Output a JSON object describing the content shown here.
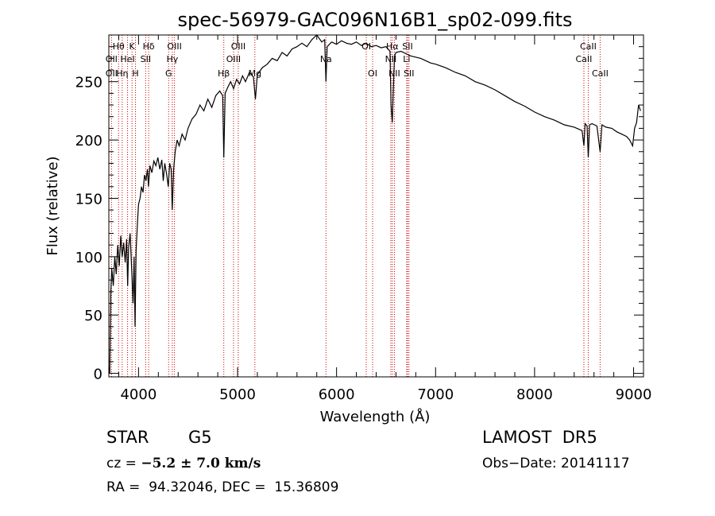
{
  "chart_data": {
    "type": "line",
    "title": "spec-56979-GAC096N16B1_sp02-099.fits",
    "xlabel": "Wavelength (Å)",
    "ylabel": "Flux (relative)",
    "xlim": [
      3700,
      9100
    ],
    "ylim": [
      -3,
      290
    ],
    "xticks": [
      4000,
      5000,
      6000,
      7000,
      8000,
      9000
    ],
    "yticks": [
      0,
      50,
      100,
      150,
      200,
      250
    ],
    "series": [
      {
        "values": [
          [
            3700,
            5
          ],
          [
            3710,
            0
          ],
          [
            3720,
            70
          ],
          [
            3730,
            90
          ],
          [
            3745,
            75
          ],
          [
            3760,
            100
          ],
          [
            3775,
            85
          ],
          [
            3790,
            110
          ],
          [
            3805,
            92
          ],
          [
            3820,
            118
          ],
          [
            3835,
            100
          ],
          [
            3850,
            112
          ],
          [
            3865,
            95
          ],
          [
            3880,
            115
          ],
          [
            3890,
            75
          ],
          [
            3900,
            108
          ],
          [
            3915,
            120
          ],
          [
            3930,
            90
          ],
          [
            3945,
            60
          ],
          [
            3955,
            100
          ],
          [
            3965,
            40
          ],
          [
            3975,
            105
          ],
          [
            3990,
            130
          ],
          [
            4000,
            145
          ],
          [
            4015,
            150
          ],
          [
            4030,
            160
          ],
          [
            4045,
            155
          ],
          [
            4060,
            170
          ],
          [
            4075,
            165
          ],
          [
            4090,
            175
          ],
          [
            4100,
            160
          ],
          [
            4115,
            178
          ],
          [
            4135,
            172
          ],
          [
            4155,
            182
          ],
          [
            4175,
            178
          ],
          [
            4195,
            185
          ],
          [
            4215,
            175
          ],
          [
            4235,
            183
          ],
          [
            4250,
            165
          ],
          [
            4265,
            180
          ],
          [
            4285,
            170
          ],
          [
            4300,
            160
          ],
          [
            4315,
            180
          ],
          [
            4330,
            175
          ],
          [
            4340,
            140
          ],
          [
            4355,
            175
          ],
          [
            4370,
            190
          ],
          [
            4390,
            200
          ],
          [
            4410,
            195
          ],
          [
            4440,
            205
          ],
          [
            4470,
            200
          ],
          [
            4500,
            210
          ],
          [
            4540,
            218
          ],
          [
            4580,
            222
          ],
          [
            4620,
            230
          ],
          [
            4660,
            225
          ],
          [
            4700,
            235
          ],
          [
            4740,
            228
          ],
          [
            4780,
            238
          ],
          [
            4820,
            242
          ],
          [
            4850,
            238
          ],
          [
            4861,
            185
          ],
          [
            4875,
            240
          ],
          [
            4900,
            245
          ],
          [
            4930,
            250
          ],
          [
            4960,
            244
          ],
          [
            4990,
            252
          ],
          [
            5020,
            248
          ],
          [
            5050,
            255
          ],
          [
            5080,
            250
          ],
          [
            5120,
            258
          ],
          [
            5160,
            254
          ],
          [
            5180,
            235
          ],
          [
            5200,
            256
          ],
          [
            5250,
            262
          ],
          [
            5300,
            265
          ],
          [
            5350,
            270
          ],
          [
            5400,
            268
          ],
          [
            5450,
            275
          ],
          [
            5500,
            272
          ],
          [
            5550,
            278
          ],
          [
            5600,
            280
          ],
          [
            5650,
            283
          ],
          [
            5700,
            280
          ],
          [
            5750,
            286
          ],
          [
            5800,
            290
          ],
          [
            5850,
            284
          ],
          [
            5880,
            286
          ],
          [
            5893,
            250
          ],
          [
            5905,
            280
          ],
          [
            5950,
            284
          ],
          [
            6000,
            282
          ],
          [
            6050,
            285
          ],
          [
            6100,
            283
          ],
          [
            6150,
            282
          ],
          [
            6200,
            284
          ],
          [
            6250,
            281
          ],
          [
            6300,
            283
          ],
          [
            6350,
            280
          ],
          [
            6400,
            281
          ],
          [
            6450,
            279
          ],
          [
            6500,
            280
          ],
          [
            6540,
            276
          ],
          [
            6550,
            230
          ],
          [
            6563,
            215
          ],
          [
            6570,
            235
          ],
          [
            6585,
            272
          ],
          [
            6600,
            275
          ],
          [
            6650,
            276
          ],
          [
            6700,
            274
          ],
          [
            6750,
            272
          ],
          [
            6800,
            271
          ],
          [
            6850,
            270
          ],
          [
            6900,
            268
          ],
          [
            6950,
            266
          ],
          [
            7000,
            265
          ],
          [
            7100,
            262
          ],
          [
            7200,
            258
          ],
          [
            7300,
            255
          ],
          [
            7400,
            250
          ],
          [
            7500,
            247
          ],
          [
            7600,
            243
          ],
          [
            7700,
            238
          ],
          [
            7800,
            233
          ],
          [
            7900,
            229
          ],
          [
            8000,
            224
          ],
          [
            8100,
            220
          ],
          [
            8200,
            217
          ],
          [
            8300,
            213
          ],
          [
            8400,
            211
          ],
          [
            8480,
            208
          ],
          [
            8498,
            195
          ],
          [
            8510,
            214
          ],
          [
            8530,
            212
          ],
          [
            8542,
            185
          ],
          [
            8555,
            213
          ],
          [
            8580,
            214
          ],
          [
            8630,
            212
          ],
          [
            8662,
            190
          ],
          [
            8680,
            213
          ],
          [
            8720,
            211
          ],
          [
            8780,
            210
          ],
          [
            8830,
            207
          ],
          [
            8880,
            205
          ],
          [
            8930,
            203
          ],
          [
            8960,
            200
          ],
          [
            8990,
            195
          ],
          [
            9010,
            210
          ],
          [
            9030,
            215
          ],
          [
            9050,
            230
          ],
          [
            9070,
            225
          ]
        ]
      }
    ],
    "lines": [
      {
        "label": "Hθ",
        "x": 3798,
        "row": 1
      },
      {
        "label": "OII",
        "x": 3727,
        "row": 2
      },
      {
        "label": "OII",
        "x": 3727,
        "row": 3
      },
      {
        "label": "HeI",
        "x": 3889,
        "row": 2
      },
      {
        "label": "Hη",
        "x": 3835,
        "row": 3
      },
      {
        "label": "K",
        "x": 3934,
        "row": 1
      },
      {
        "label": "H",
        "x": 3969,
        "row": 3
      },
      {
        "label": "Hδ",
        "x": 4102,
        "row": 1
      },
      {
        "label": "SII",
        "x": 4072,
        "row": 2
      },
      {
        "label": "OIII",
        "x": 4363,
        "row": 1
      },
      {
        "label": "Hγ",
        "x": 4341,
        "row": 2
      },
      {
        "label": "G",
        "x": 4304,
        "row": 3
      },
      {
        "label": "OIII",
        "x": 5007,
        "row": 1
      },
      {
        "label": "OIII",
        "x": 4959,
        "row": 2
      },
      {
        "label": "Hβ",
        "x": 4861,
        "row": 3
      },
      {
        "label": "Mg",
        "x": 5175,
        "row": 3
      },
      {
        "label": "Na",
        "x": 5893,
        "row": 2
      },
      {
        "label": "OI",
        "x": 6300,
        "row": 1
      },
      {
        "label": "OI",
        "x": 6364,
        "row": 3
      },
      {
        "label": "Hα",
        "x": 6563,
        "row": 1
      },
      {
        "label": "NII",
        "x": 6548,
        "row": 2
      },
      {
        "label": "NII",
        "x": 6584,
        "row": 3
      },
      {
        "label": "SII",
        "x": 6717,
        "row": 1
      },
      {
        "label": "Li",
        "x": 6708,
        "row": 2
      },
      {
        "label": "SII",
        "x": 6731,
        "row": 3
      },
      {
        "label": "CaII",
        "x": 8542,
        "row": 1
      },
      {
        "label": "CaII",
        "x": 8498,
        "row": 2
      },
      {
        "label": "CaII",
        "x": 8662,
        "row": 3
      }
    ],
    "colors": {
      "line_marker": "#cc0000",
      "spectrum": "#000000"
    }
  },
  "info": {
    "object_type": "STAR",
    "subclass": "G5",
    "survey": "LAMOST  DR5",
    "cz_label": "cz = ",
    "cz_value": "−5.2 ± 7.0 km/s",
    "obs_date": "Obs−Date: 20141117",
    "radec": "RA =  94.32046, DEC =  15.36809"
  }
}
